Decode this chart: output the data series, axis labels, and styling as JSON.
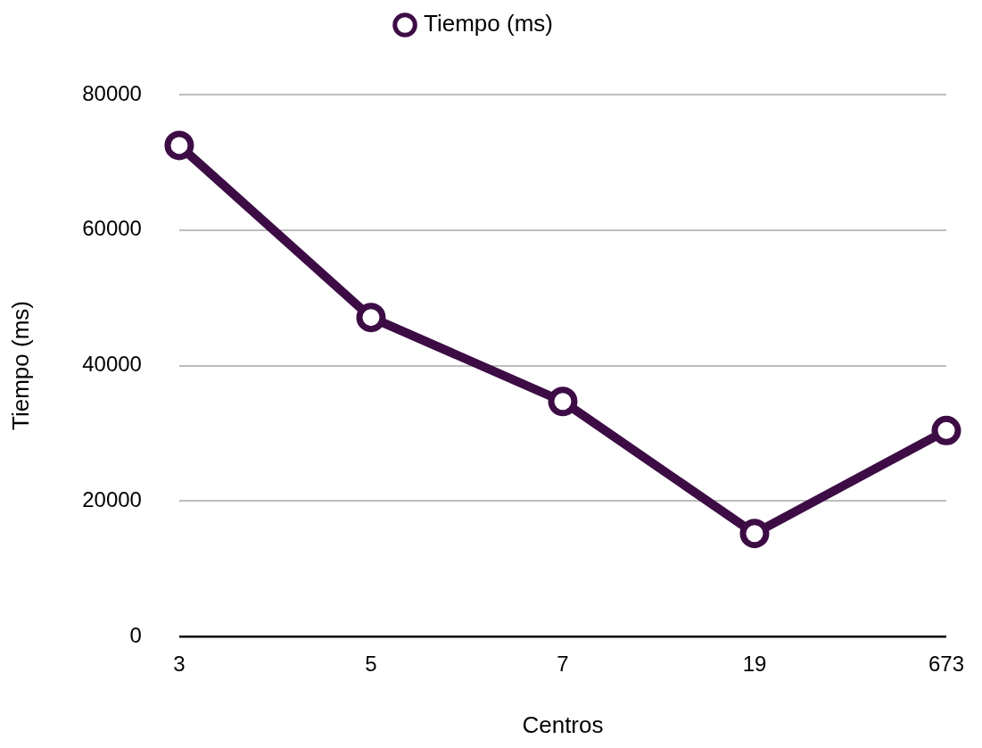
{
  "chart_data": {
    "type": "line",
    "xlabel": "Centros",
    "ylabel": "Tiempo (ms)",
    "categories": [
      "3",
      "5",
      "7",
      "19",
      "673"
    ],
    "series": [
      {
        "name": "Tiempo (ms)",
        "color": "#3d0c45",
        "values": [
          72500,
          47100,
          34700,
          15200,
          30400
        ]
      }
    ],
    "ylim": [
      0,
      80000
    ],
    "yticks": [
      0,
      20000,
      40000,
      60000,
      80000
    ],
    "grid": "y",
    "legend": "top",
    "marker": "circle",
    "line_style": "solid"
  }
}
